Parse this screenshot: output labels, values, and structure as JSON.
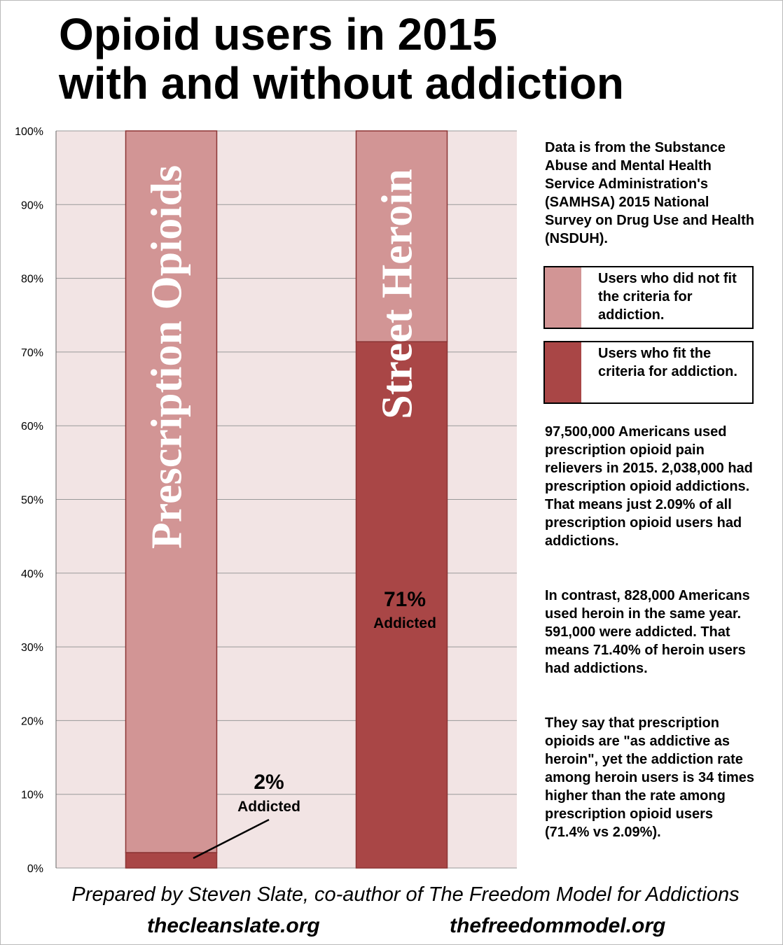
{
  "title": {
    "line1": "Opioid users in 2015",
    "line2": "with and without addiction"
  },
  "colors": {
    "plot_background": "#f2e4e4",
    "not_addicted": "#d29595",
    "addicted": "#a94646",
    "bar_border": "#8c3535",
    "gridline": "#999999"
  },
  "chart_data": {
    "type": "bar",
    "stacked": true,
    "percent_stacked": true,
    "categories": [
      "Prescription Opioids",
      "Street Heroin"
    ],
    "series": [
      {
        "name": "Users who fit the criteria for addiction.",
        "values": [
          2.09,
          71.4
        ],
        "color": "#a94646"
      },
      {
        "name": "Users who did not fit the criteria for addiction.",
        "values": [
          97.91,
          28.6
        ],
        "color": "#d29595"
      }
    ],
    "ylim": [
      0,
      100
    ],
    "yticks": [
      "0%",
      "10%",
      "20%",
      "30%",
      "40%",
      "50%",
      "60%",
      "70%",
      "80%",
      "90%",
      "100%"
    ],
    "grid": true,
    "legend_position": "right",
    "annotations": [
      {
        "bar": "Prescription Opioids",
        "value_label": "2%",
        "sub_label": "Addicted"
      },
      {
        "bar": "Street Heroin",
        "value_label": "71%",
        "sub_label": "Addicted"
      }
    ]
  },
  "legend": {
    "not_addicted": "Users who did not fit the criteria for addiction.",
    "addicted": "Users who fit the criteria for addiction."
  },
  "notes": {
    "source": "Data is from the Substance Abuse and Mental Health Service Administration's (SAMHSA) 2015 National Survey on Drug Use and Health (NSDUH).",
    "prescription": "97,500,000 Americans used prescription opioid pain relievers in 2015. 2,038,000 had prescription opioid addictions. That means just 2.09% of all prescription opioid users had addictions.",
    "heroin": "In contrast, 828,000 Americans used heroin in the same year. 591,000 were addicted. That means 71.40% of heroin users had addictions.",
    "comparison": "They say that prescription opioids are \"as addictive as heroin\", yet the addiction rate among heroin users is 34 times higher than the rate among prescription opioid users (71.4% vs 2.09%)."
  },
  "footer": {
    "credit": "Prepared by Steven Slate, co-author of The Freedom Model for Addictions",
    "site1": "thecleanslate.org",
    "site2": "thefreedommodel.org"
  }
}
